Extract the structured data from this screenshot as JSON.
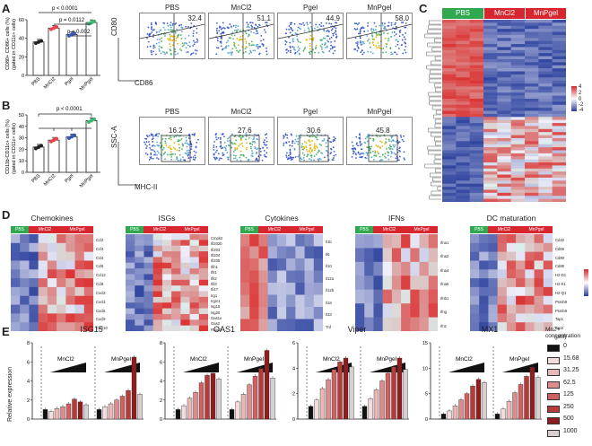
{
  "panels": {
    "A": {
      "letter": "A",
      "ylabel_line1": "CD80+ CD86+ cells (%)",
      "ylabel_line2": "(gated in CD11c+ cells)",
      "yticks": [
        "0",
        "20",
        "40",
        "60"
      ],
      "ymax": 60,
      "groups": [
        "PBS",
        "MnCl2",
        "Pgel",
        "MnPgel"
      ],
      "means": [
        36,
        51,
        44,
        57
      ],
      "colors": [
        "#ffffff",
        "#e8434a",
        "#3b55b5",
        "#3cb575"
      ],
      "pvalues": [
        "p < 0.0001",
        "p = 0.0112",
        "p = 0.002"
      ],
      "axis_x": "CD86",
      "axis_y": "CD80",
      "facs_labels": [
        "PBS",
        "MnCl2",
        "Pgel",
        "MnPgel"
      ],
      "facs_values": [
        "32.4",
        "51.1",
        "44.9",
        "58.0"
      ]
    },
    "B": {
      "letter": "B",
      "ylabel_line1": "CD11b-CD11c+ cells (%)",
      "ylabel_line2": "(gated in CD11c+ cells)",
      "yticks": [
        "0",
        "10",
        "20",
        "30",
        "40",
        "50"
      ],
      "ymax": 50,
      "groups": [
        "PBS",
        "MnCl2",
        "Pgel",
        "MnPgel"
      ],
      "means": [
        22,
        28,
        31,
        45
      ],
      "pvalues": [
        "p < 0.0001"
      ],
      "axis_x": "MHC-II",
      "axis_y": "SSC-A",
      "facs_labels": [
        "PBS",
        "MnCl2",
        "Pgel",
        "MnPgel"
      ],
      "facs_values": [
        "16.2",
        "27.6",
        "30.6",
        "45.8"
      ]
    },
    "C": {
      "letter": "C",
      "groups": [
        "PBS",
        "MnCl2",
        "MnPgel"
      ],
      "group_colors": [
        "#2fa84f",
        "#d8262e",
        "#d8262e"
      ],
      "scale": [
        "4",
        "2",
        "0",
        "-2",
        "-4"
      ]
    },
    "D": {
      "letter": "D",
      "heatmaps": [
        {
          "title": "Chemokines",
          "genes": [
            "Ccl2",
            "Ccl3",
            "Ccl4",
            "Ccl5",
            "Ccl12",
            "Ccl8",
            "Cxcl2",
            "Cxcl3",
            "Cxcl5",
            "Cxcl9",
            "Cxcl10"
          ]
        },
        {
          "title": "ISGs",
          "genes": [
            "Cmpk2",
            "Ifi202b",
            "Ifi203",
            "Ifi204",
            "Ifi205",
            "Ifih1",
            "Ifit1",
            "Ifit2",
            "Ifit3",
            "Ifi47",
            "Irg1",
            "Irgm1",
            "Isg15",
            "Isg20",
            "Oas1e",
            "Oas2",
            "Rsad2"
          ]
        },
        {
          "title": "Cytokines",
          "genes": [
            "Il1b",
            "Il6",
            "Il10",
            "Il12a",
            "Il12b",
            "Il18",
            "Il33",
            "Tnf"
          ]
        },
        {
          "title": "IFNs",
          "genes": [
            "Ifna1",
            "Ifna2",
            "Ifna4",
            "Ifna5",
            "Ifnb1",
            "Ifng",
            "Ifnz"
          ]
        },
        {
          "title": "DC maturation",
          "genes": [
            "Cd40",
            "Cd69",
            "Cd80",
            "Cd86",
            "H2-D1",
            "H2-K1",
            "H2-Q1",
            "Psmb8",
            "Psmb9",
            "Tap1",
            "Tap2"
          ]
        }
      ],
      "header_labels": [
        "PBS",
        "MnCl2",
        "MnPgel"
      ],
      "scale": [
        "2",
        "0",
        "-2"
      ]
    },
    "E": {
      "letter": "E",
      "ylabel": "Relative expression",
      "group_labels": [
        "MnCl2",
        "MnPgel"
      ],
      "legend_title_line1": "Mn2+ concentration",
      "legend_title_line2": "(μM)",
      "concentrations": [
        "0",
        "15.68",
        "31.25",
        "62.5",
        "125",
        "250",
        "500",
        "1000"
      ],
      "conc_colors": [
        "#111111",
        "#f4dcdc",
        "#e9b7b7",
        "#dc8c8c",
        "#cf6161",
        "#b83a3a",
        "#8f1d1d",
        "#d8cfcf"
      ],
      "charts": [
        {
          "title": "ISG15",
          "yticks": [
            "0",
            "2",
            "4",
            "6",
            "8"
          ],
          "ymax": 8,
          "mncl2": [
            1,
            0.8,
            1.1,
            1.3,
            1.6,
            2.1,
            1.8,
            1.5
          ],
          "mnpgel": [
            1,
            1.3,
            1.6,
            2.0,
            2.4,
            3.0,
            6.5,
            2.6
          ]
        },
        {
          "title": "OAS1",
          "yticks": [
            "0",
            "2",
            "4",
            "6",
            "8"
          ],
          "ymax": 8,
          "mncl2": [
            1,
            1.4,
            2.2,
            2.8,
            3.8,
            4.6,
            4.8,
            4.2
          ],
          "mnpgel": [
            1,
            1.8,
            2.6,
            3.6,
            4.5,
            5.3,
            7.2,
            4.3
          ]
        },
        {
          "title": "Viper",
          "yticks": [
            "0",
            "2",
            "4",
            "6"
          ],
          "ymax": 6,
          "mncl2": [
            1,
            1.5,
            2.4,
            3.1,
            3.9,
            4.5,
            4.8,
            4.1
          ],
          "mnpgel": [
            1,
            1.6,
            2.3,
            3.0,
            3.6,
            4.1,
            4.8,
            3.9
          ]
        },
        {
          "title": "MX1",
          "yticks": [
            "0",
            "5",
            "10",
            "15"
          ],
          "ymax": 15,
          "mncl2": [
            1,
            1.6,
            2.6,
            3.8,
            5.0,
            6.5,
            7.8,
            7.2
          ],
          "mnpgel": [
            1,
            2.0,
            3.5,
            5.2,
            6.8,
            8.4,
            10.2,
            8.2
          ]
        }
      ]
    }
  }
}
